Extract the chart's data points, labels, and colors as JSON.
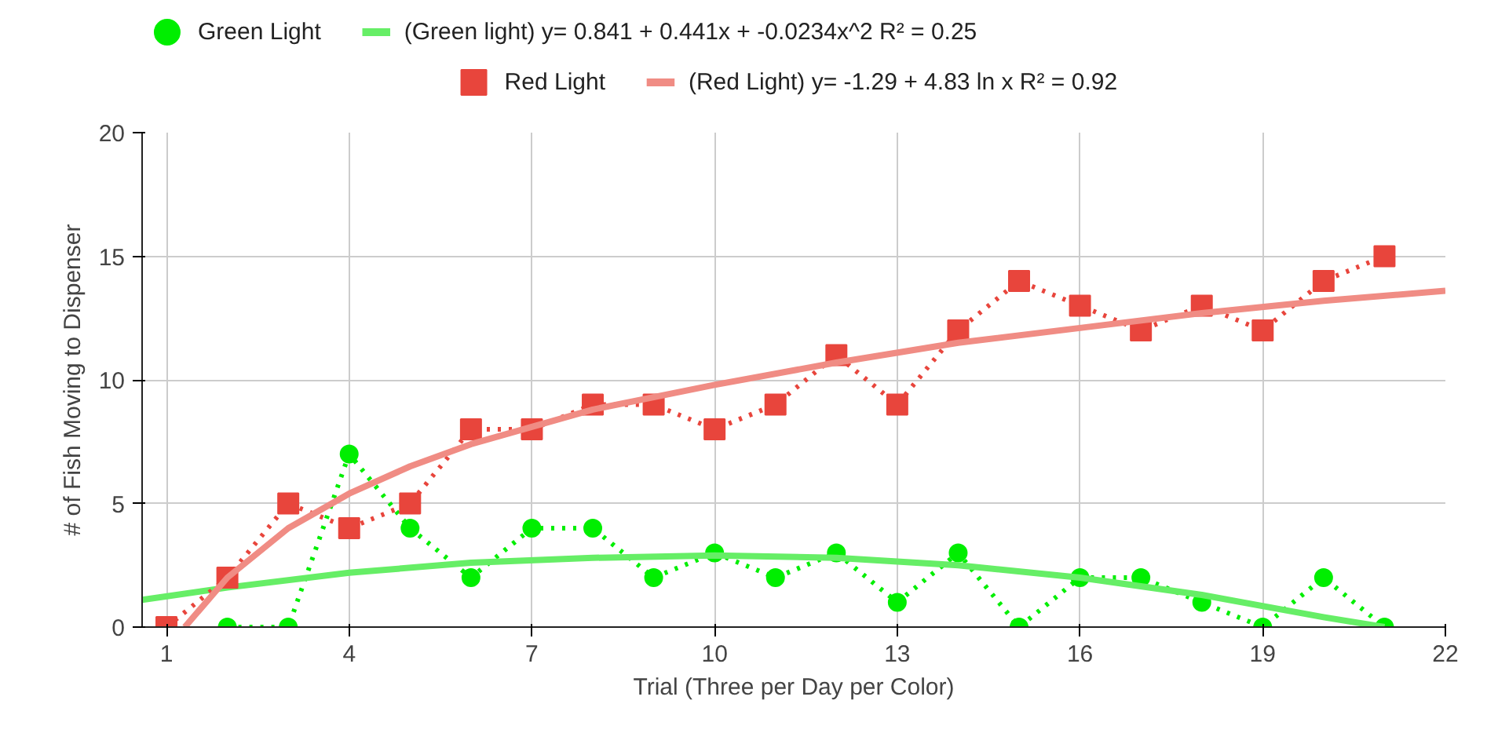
{
  "chart_data": {
    "type": "line",
    "xlabel": "Trial (Three per Day per Color)",
    "ylabel": "# of Fish Moving to Dispenser",
    "x": [
      1,
      2,
      3,
      4,
      5,
      6,
      7,
      8,
      9,
      10,
      11,
      12,
      13,
      14,
      15,
      16,
      17,
      18,
      19,
      20,
      21
    ],
    "series": [
      {
        "name": "Green Light",
        "color": "#00ee00",
        "marker": "circle",
        "line_style": "dotted",
        "values": [
          null,
          0,
          0,
          7,
          4,
          2,
          4,
          4,
          2,
          3,
          2,
          3,
          1,
          3,
          0,
          2,
          2,
          1,
          0,
          2,
          0
        ]
      },
      {
        "name": "(Green light) y= 0.841 + 0.441x + -0.0234x^2   R² = 0.25",
        "color": "#66ee66",
        "marker": "none",
        "line_style": "solid",
        "x": [
          0.6,
          2,
          4,
          6,
          8,
          10,
          12,
          14,
          16,
          18,
          20,
          21
        ],
        "values": [
          1.1,
          1.6,
          2.2,
          2.6,
          2.8,
          2.9,
          2.8,
          2.5,
          2.0,
          1.3,
          0.4,
          0
        ]
      },
      {
        "name": "Red Light",
        "color": "#e8453c",
        "marker": "square",
        "line_style": "dotted",
        "values": [
          0,
          2,
          5,
          4,
          5,
          8,
          8,
          9,
          9,
          8,
          9,
          11,
          9,
          12,
          14,
          13,
          12,
          13,
          12,
          14,
          15
        ]
      },
      {
        "name": "(Red Light) y= -1.29 + 4.83 ln x    R² = 0.92",
        "color": "#f08c84",
        "marker": "none",
        "line_style": "solid",
        "x": [
          1.3,
          2,
          3,
          4,
          5,
          6,
          8,
          10,
          12,
          14,
          16,
          18,
          20,
          22
        ],
        "values": [
          0,
          2.0,
          4.0,
          5.4,
          6.5,
          7.4,
          8.8,
          9.8,
          10.7,
          11.5,
          12.1,
          12.7,
          13.2,
          13.6
        ]
      }
    ],
    "xlim": [
      0.6,
      22
    ],
    "xticks": [
      1,
      4,
      7,
      10,
      13,
      16,
      19,
      22
    ],
    "ylim": [
      0,
      20
    ],
    "yticks": [
      0,
      5,
      10,
      15,
      20
    ],
    "grid": true,
    "legend": "top"
  }
}
